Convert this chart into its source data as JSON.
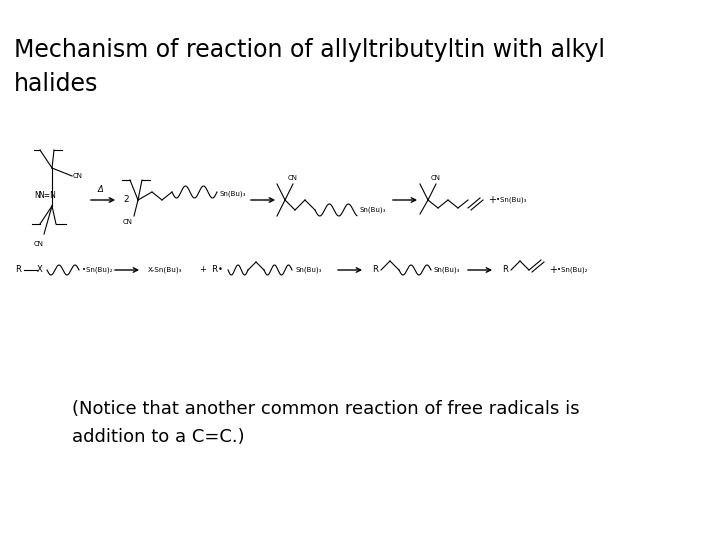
{
  "title_line1": "Mechanism of reaction of allyltributyltin with alkyl",
  "title_line2": "halides",
  "title_fontsize": 17,
  "notice_line1": "(Notice that another common reaction of free radicals is",
  "notice_line2": "addition to a C=C.)",
  "notice_fontsize": 13,
  "background_color": "#ffffff",
  "text_color": "#000000",
  "fig_width": 7.2,
  "fig_height": 5.4,
  "dpi": 100
}
